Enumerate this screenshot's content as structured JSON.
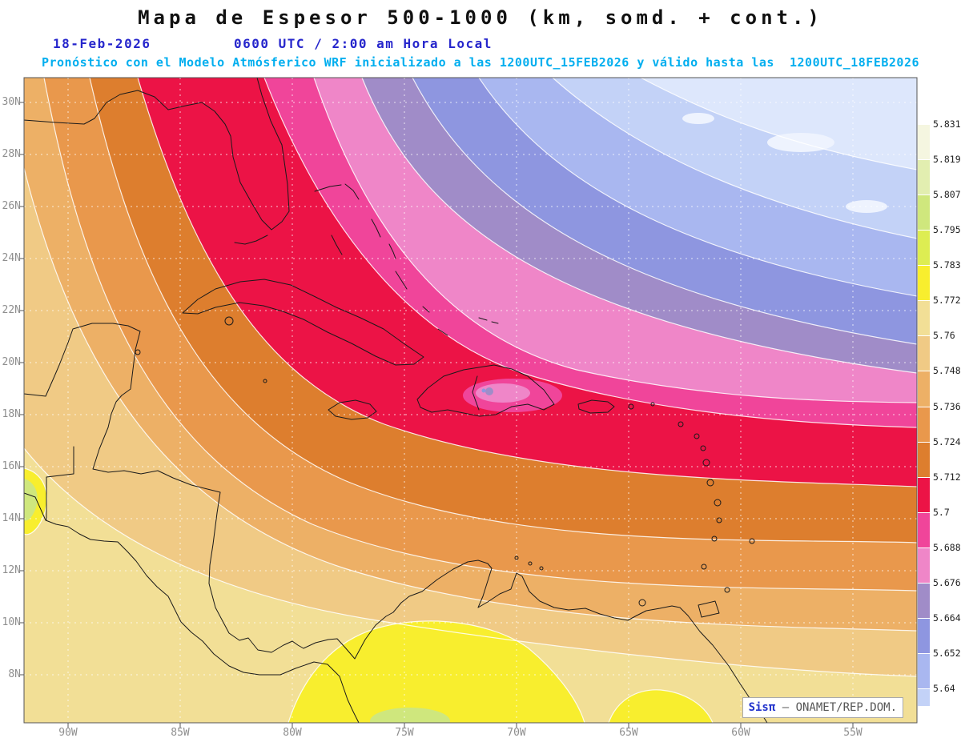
{
  "header": {
    "title": "Mapa de Espesor 500-1000 (km, somd. + cont.)",
    "date": "18-Feb-2026",
    "valid_time": "0600 UTC / 2:00 am Hora Local",
    "forecast_note": "Pronóstico con el Modelo Atmósferico WRF inicializado a las 1200UTC_15FEB2026 y válido hasta las  1200UTC_18FEB2026"
  },
  "map": {
    "lat_labels": [
      "30N",
      "28N",
      "26N",
      "24N",
      "22N",
      "20N",
      "18N",
      "16N",
      "14N",
      "12N",
      "10N",
      "8N"
    ],
    "lon_labels": [
      "90W",
      "85W",
      "80W",
      "75W",
      "70W",
      "65W",
      "60W",
      "55W"
    ],
    "credit": {
      "brand": "Sisπ",
      "suffix": " – ONAMET/REP.DOM."
    }
  },
  "colorbar": {
    "labels": [
      "5.831",
      "5.819",
      "5.807",
      "5.795",
      "5.783",
      "5.772",
      "5.76",
      "5.748",
      "5.736",
      "5.724",
      "5.712",
      "5.7",
      "5.688",
      "5.676",
      "5.664",
      "5.652",
      "5.64"
    ],
    "colors": [
      "#ffffff",
      "#f5f6e0",
      "#e2eeb0",
      "#cfe77d",
      "#dded52",
      "#f8ee2e",
      "#f2df96",
      "#f0ca85",
      "#edb066",
      "#e9984c",
      "#dd7e2e",
      "#ec1346",
      "#f0459a",
      "#ef86c8",
      "#a08cc8",
      "#8e96e0",
      "#a9b7f0",
      "#c3d2f7"
    ]
  },
  "chart_data": {
    "type": "heatmap",
    "title": "Mapa de Espesor 500-1000 (km, somd. + cont.)",
    "units": "km",
    "x_ticks": [
      "90W",
      "85W",
      "80W",
      "75W",
      "70W",
      "65W",
      "60W",
      "55W"
    ],
    "y_ticks": [
      "30N",
      "28N",
      "26N",
      "24N",
      "22N",
      "20N",
      "18N",
      "16N",
      "14N",
      "12N",
      "10N",
      "8N"
    ],
    "levels": [
      5.64,
      5.652,
      5.664,
      5.676,
      5.688,
      5.7,
      5.712,
      5.724,
      5.736,
      5.748,
      5.76,
      5.772,
      5.783,
      5.795,
      5.807,
      5.819,
      5.831
    ],
    "legend_position": "right",
    "grid": true,
    "field_description": "500-1000 hPa thickness: highest values (~5.78-5.79 km, yellow) over northern South America; broad 5.71-5.76 km orange/tan field over the Caribbean and Central America; a 5.70-5.712 km red band crossing Florida Straits, Cuba, Hispaniola, Puerto Rico and the northeast Caribbean; decreasing through pink (5.688-5.70), purple (5.664-5.688) and blue (<5.664) bands toward the northwest Atlantic, minimum below 5.64 km in the northeast corner."
  }
}
